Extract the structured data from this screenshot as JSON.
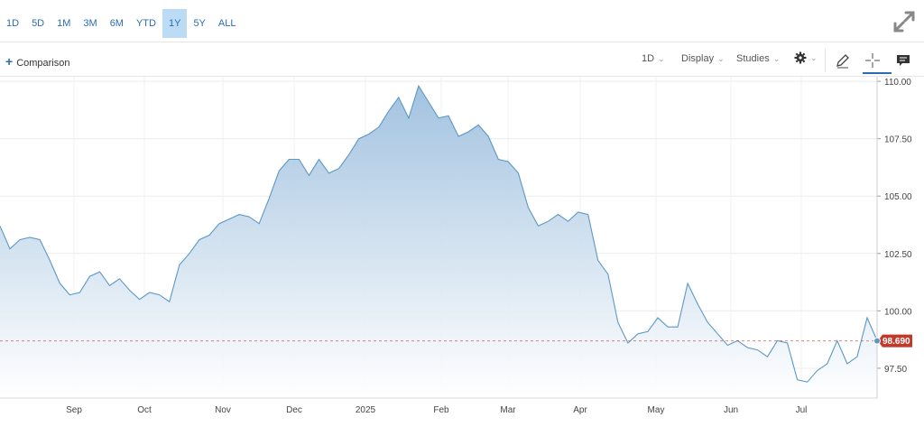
{
  "ranges": [
    "1D",
    "5D",
    "1M",
    "3M",
    "6M",
    "YTD",
    "1Y",
    "5Y",
    "ALL"
  ],
  "active_range": "1Y",
  "toolbar": {
    "comparison_label": "Comparison",
    "interval_label": "1D",
    "display_label": "Display",
    "studies_label": "Studies"
  },
  "colors": {
    "line": "#5b98c6",
    "fill_top": "#9dbfde",
    "fill_bottom": "#ffffff",
    "last_price_badge": "#c0392b",
    "active_range_bg": "#bcdcf5",
    "link": "#2a6db5"
  },
  "icons": [
    "plus-icon",
    "chevron-down-icon",
    "gear-icon",
    "pencil-icon",
    "crosshair-icon",
    "comment-icon",
    "expand-icon"
  ],
  "chart_data": {
    "type": "area",
    "x_labels": [
      "Sep",
      "Oct",
      "Nov",
      "Dec",
      "2025",
      "Feb",
      "Mar",
      "Apr",
      "May",
      "Jun",
      "Jul"
    ],
    "y_ticks": [
      "110.00",
      "107.50",
      "105.00",
      "102.50",
      "100.00",
      "97.50"
    ],
    "ylim": [
      96.2,
      110.2
    ],
    "last_price": "98.690",
    "grid": true,
    "series": [
      {
        "values": [
          103.7,
          102.7,
          103.1,
          103.2,
          103.1,
          102.2,
          101.2,
          100.7,
          100.8,
          101.5,
          101.7,
          101.1,
          101.4,
          100.9,
          100.5,
          100.8,
          100.7,
          100.4,
          102.0,
          102.5,
          103.1,
          103.3,
          103.8,
          104.0,
          104.2,
          104.1,
          103.8,
          104.9,
          106.1,
          106.6,
          106.6,
          105.9,
          106.6,
          106.0,
          106.2,
          106.8,
          107.5,
          107.7,
          108.0,
          108.7,
          109.3,
          108.4,
          109.8,
          109.1,
          108.4,
          108.5,
          107.6,
          107.8,
          108.1,
          107.6,
          106.6,
          106.5,
          106.0,
          104.5,
          103.7,
          103.9,
          104.2,
          103.9,
          104.3,
          104.2,
          102.2,
          101.6,
          99.5,
          98.6,
          99.0,
          99.1,
          99.7,
          99.3,
          99.3,
          101.2,
          100.3,
          99.5,
          99.0,
          98.5,
          98.7,
          98.4,
          98.3,
          98.0,
          98.7,
          98.6,
          97.0,
          96.9,
          97.4,
          97.7,
          98.7,
          97.7,
          98.0,
          99.7,
          98.7
        ]
      }
    ]
  }
}
